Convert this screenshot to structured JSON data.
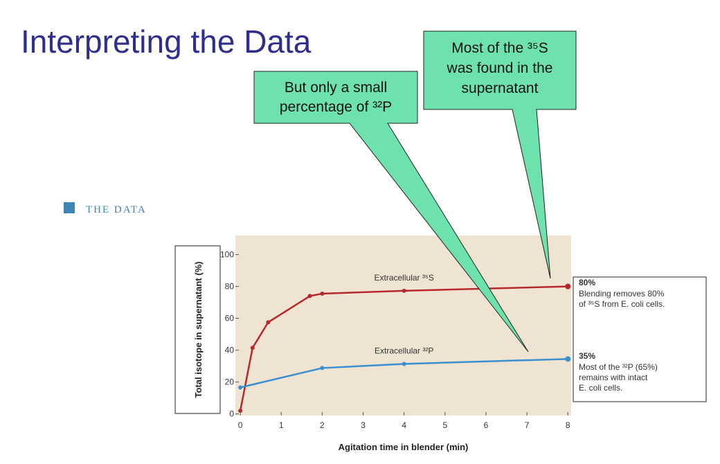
{
  "slide": {
    "title": "Interpreting the Data",
    "section": "THE DATA",
    "callouts": [
      {
        "lines": [
          "But only a small",
          "percentage of ³²P"
        ]
      },
      {
        "lines": [
          "Most of the ³⁵S",
          "was found in the",
          "supernatant"
        ]
      }
    ]
  },
  "chart_data": {
    "type": "line",
    "xlabel": "Agitation time in blender (min)",
    "ylabel": "Total isotope in supernatant (%)",
    "xlim": [
      -0.12,
      8.08
    ],
    "xticks": [
      0,
      1,
      2,
      3,
      4,
      5,
      6,
      7,
      8
    ],
    "ylim": [
      -1,
      112
    ],
    "yticks": [
      0,
      20,
      40,
      60,
      80,
      100
    ],
    "background": "#efe4d2",
    "series": [
      {
        "name": "Extracellular ³⁵S",
        "color": "#b5282c",
        "x": [
          0,
          0.3,
          0.68,
          1.7,
          2,
          4,
          8
        ],
        "values": [
          2,
          41.5,
          57.5,
          74,
          75.5,
          77.3,
          80
        ]
      },
      {
        "name": "Extracellular ³²P",
        "color": "#3a8fd0",
        "x": [
          0,
          2,
          4,
          8
        ],
        "values": [
          16.6,
          28.8,
          31.4,
          34.5
        ]
      }
    ],
    "annotations": [
      {
        "headline": "80%",
        "lines": [
          "Blending removes 80%",
          "of ³⁵S from E. coli cells."
        ]
      },
      {
        "headline": "35%",
        "lines": [
          "Most of the ³²P (65%)",
          "remains with intact",
          "E. coli cells."
        ]
      }
    ]
  }
}
